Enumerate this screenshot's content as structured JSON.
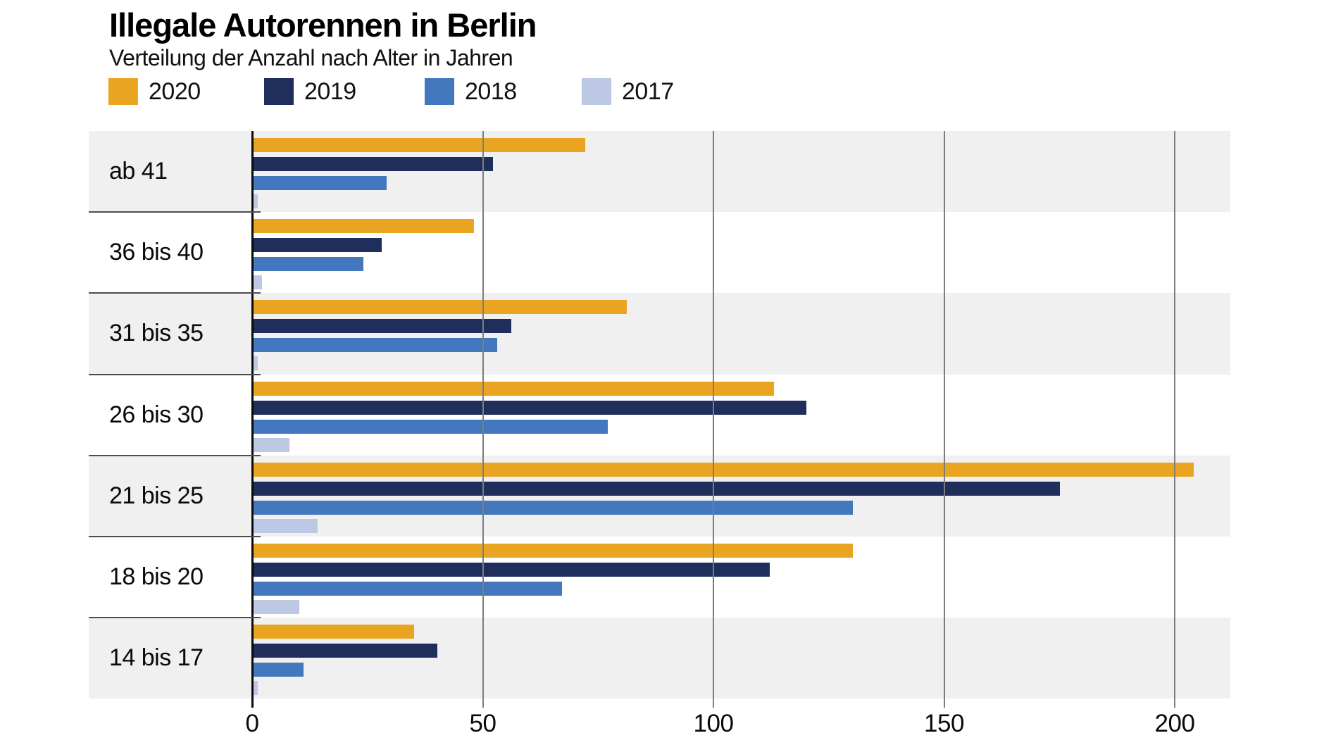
{
  "header": {
    "title": "Illegale Autorennen in Berlin",
    "subtitle": "Verteilung der Anzahl nach Alter in Jahren"
  },
  "legend": {
    "position": "top",
    "items": [
      {
        "label": "2020",
        "color": "#e9a521"
      },
      {
        "label": "2019",
        "color": "#1f2e5a"
      },
      {
        "label": "2018",
        "color": "#4478be"
      },
      {
        "label": "2017",
        "color": "#bdc8e4"
      }
    ]
  },
  "chart_data": {
    "type": "bar",
    "orientation": "horizontal",
    "title": "Illegale Autorennen in Berlin",
    "subtitle": "Verteilung der Anzahl nach Alter in Jahren",
    "categories": [
      "ab 41",
      "36 bis 40",
      "31 bis 35",
      "26 bis 30",
      "21 bis 25",
      "18 bis 20",
      "14 bis 17"
    ],
    "series": [
      {
        "name": "2020",
        "color": "#e9a521",
        "values": [
          72,
          48,
          81,
          113,
          204,
          130,
          35
        ]
      },
      {
        "name": "2019",
        "color": "#1f2e5a",
        "values": [
          52,
          28,
          56,
          120,
          175,
          112,
          40
        ]
      },
      {
        "name": "2018",
        "color": "#4478be",
        "values": [
          29,
          24,
          53,
          77,
          130,
          67,
          11
        ]
      },
      {
        "name": "2017",
        "color": "#bdc8e4",
        "values": [
          1,
          2,
          1,
          8,
          14,
          10,
          1
        ]
      }
    ],
    "x_ticks": [
      0,
      50,
      100,
      150,
      200
    ],
    "xlim": [
      0,
      212
    ],
    "grid": true,
    "row_stripes": true,
    "stripe_color": "#f0f0f0",
    "legend_position": "top"
  }
}
